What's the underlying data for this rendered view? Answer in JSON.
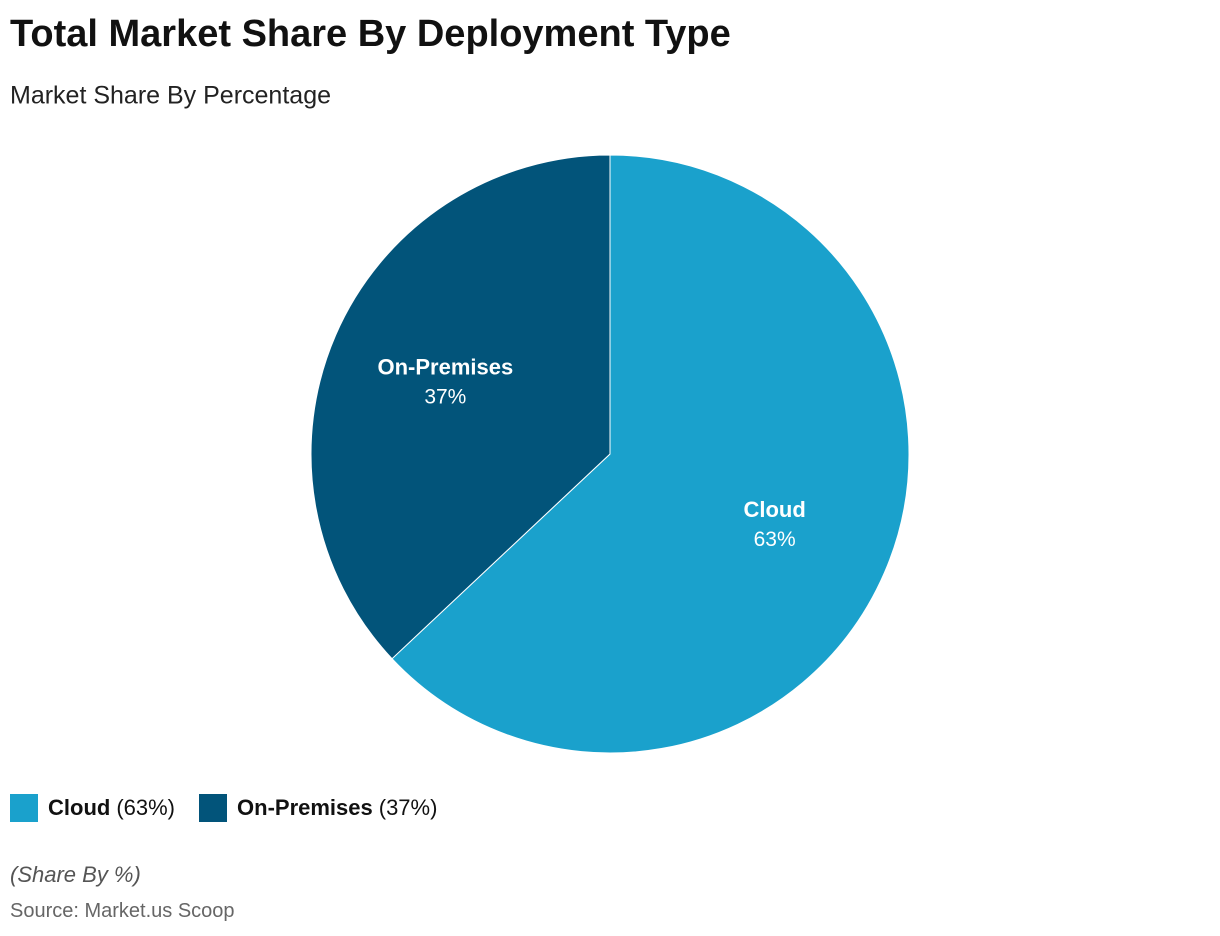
{
  "chart_data": {
    "type": "pie",
    "title": "Total Market Share By Deployment Type",
    "subtitle": "Market Share By Percentage",
    "categories": [
      "Cloud",
      "On-Premises"
    ],
    "values": [
      63,
      37
    ],
    "value_labels": [
      "63%",
      "37%"
    ],
    "legend_value_labels": [
      "(63%)",
      "(37%)"
    ],
    "colors": [
      "#1aa1cc",
      "#02547a"
    ],
    "note": "(Share By %)",
    "source": "Source: Market.us Scoop"
  }
}
